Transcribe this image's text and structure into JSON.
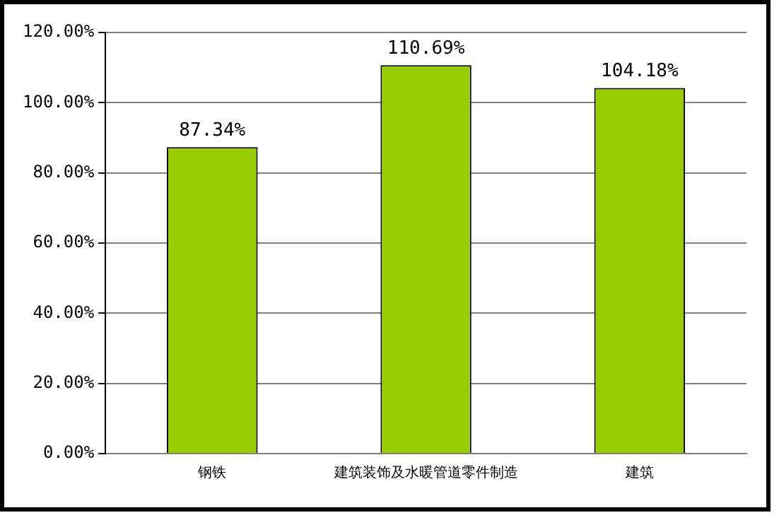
{
  "chart_data": {
    "type": "bar",
    "categories": [
      "钢铁",
      "建筑装饰及水暖管道零件制造",
      "建筑"
    ],
    "values": [
      87.34,
      110.69,
      104.18
    ],
    "color": "#99cc00",
    "value_labels": [
      "87.34%",
      "110.69%",
      "104.18%"
    ],
    "ylim": [
      0,
      120
    ],
    "yticks": [
      {
        "value": 0,
        "label": "0.00%"
      },
      {
        "value": 20,
        "label": "20.00%"
      },
      {
        "value": 40,
        "label": "40.00%"
      },
      {
        "value": 60,
        "label": "60.00%"
      },
      {
        "value": 80,
        "label": "80.00%"
      },
      {
        "value": 100,
        "label": "100.00%"
      },
      {
        "value": 120,
        "label": "120.00%"
      }
    ],
    "grid": "y",
    "legend": false
  }
}
